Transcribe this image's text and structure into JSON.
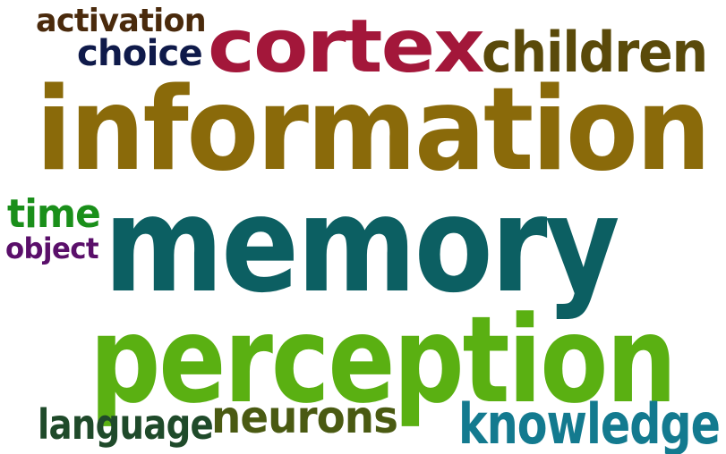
{
  "words": [
    {
      "key": "activation",
      "text": "activation",
      "color": "#4a2a0c"
    },
    {
      "key": "choice",
      "text": "choice",
      "color": "#0f1a4a"
    },
    {
      "key": "cortex",
      "text": "cortex",
      "color": "#a3173a"
    },
    {
      "key": "children",
      "text": "children",
      "color": "#5a4a0a"
    },
    {
      "key": "information",
      "text": "information",
      "color": "#8a6a0a"
    },
    {
      "key": "time",
      "text": "time",
      "color": "#1a8f1a"
    },
    {
      "key": "object",
      "text": "object",
      "color": "#5a0f6a"
    },
    {
      "key": "memory",
      "text": "memory",
      "color": "#0c5f62"
    },
    {
      "key": "perception",
      "text": "perception",
      "color": "#5ab012"
    },
    {
      "key": "language",
      "text": "language",
      "color": "#1f4a2a"
    },
    {
      "key": "neurons",
      "text": "neurons",
      "color": "#4a5a12"
    },
    {
      "key": "knowledge",
      "text": "knowledge",
      "color": "#137a8f"
    }
  ]
}
